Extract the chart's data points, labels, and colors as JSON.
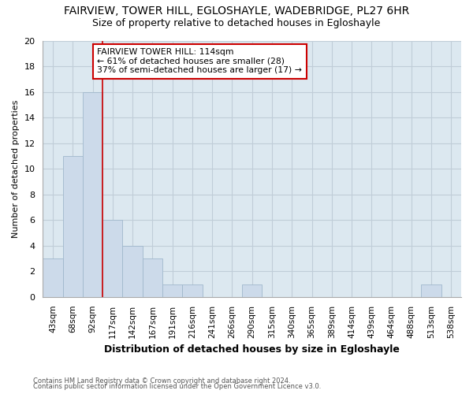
{
  "title": "FAIRVIEW, TOWER HILL, EGLOSHAYLE, WADEBRIDGE, PL27 6HR",
  "subtitle": "Size of property relative to detached houses in Egloshayle",
  "xlabel": "Distribution of detached houses by size in Egloshayle",
  "ylabel": "Number of detached properties",
  "categories": [
    "43sqm",
    "68sqm",
    "92sqm",
    "117sqm",
    "142sqm",
    "167sqm",
    "191sqm",
    "216sqm",
    "241sqm",
    "266sqm",
    "290sqm",
    "315sqm",
    "340sqm",
    "365sqm",
    "389sqm",
    "414sqm",
    "439sqm",
    "464sqm",
    "488sqm",
    "513sqm",
    "538sqm"
  ],
  "values": [
    3,
    11,
    16,
    6,
    4,
    3,
    1,
    1,
    0,
    0,
    1,
    0,
    0,
    0,
    0,
    0,
    0,
    0,
    0,
    1,
    0
  ],
  "bar_color": "#ccdaea",
  "bar_edge_color": "#a0b8cc",
  "vline_color": "#cc0000",
  "vline_index": 3,
  "ylim": [
    0,
    20
  ],
  "yticks": [
    0,
    2,
    4,
    6,
    8,
    10,
    12,
    14,
    16,
    18,
    20
  ],
  "annotation_title": "FAIRVIEW TOWER HILL: 114sqm",
  "annotation_line1": "← 61% of detached houses are smaller (28)",
  "annotation_line2": "37% of semi-detached houses are larger (17) →",
  "annotation_box_color": "#ffffff",
  "annotation_box_edge_color": "#cc0000",
  "footer_line1": "Contains HM Land Registry data © Crown copyright and database right 2024.",
  "footer_line2": "Contains public sector information licensed under the Open Government Licence v3.0.",
  "background_color": "#ffffff",
  "axes_bg_color": "#dce8f0",
  "grid_color": "#c0cdd8"
}
